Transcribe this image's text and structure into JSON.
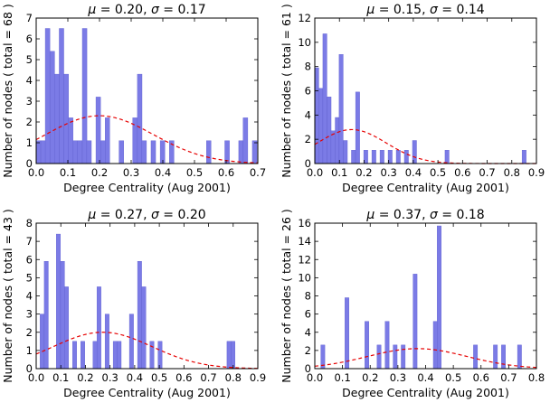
{
  "chart_data": [
    {
      "type": "bar",
      "title_prefix": "μ = 0.20, σ = 0.17",
      "mu_label": "μ",
      "mu": "0.20",
      "sigma_label": "σ",
      "sigma": "0.17",
      "xlabel": "Degree Centrality (Aug 2001)",
      "ylabel": "Number of nodes ( total = 68 )",
      "xlim": [
        0,
        0.7
      ],
      "ylim": [
        0,
        7
      ],
      "xticks": [
        "0.0",
        "0.1",
        "0.2",
        "0.3",
        "0.4",
        "0.5",
        "0.6",
        "0.7"
      ],
      "yticks": [
        "0",
        "1",
        "2",
        "3",
        "4",
        "5",
        "6",
        "7"
      ],
      "bin_width": 0.0145,
      "x": [
        0.007,
        0.022,
        0.036,
        0.051,
        0.065,
        0.08,
        0.095,
        0.109,
        0.124,
        0.138,
        0.153,
        0.167,
        0.196,
        0.211,
        0.225,
        0.269,
        0.312,
        0.327,
        0.341,
        0.37,
        0.399,
        0.428,
        0.545,
        0.603,
        0.647,
        0.661,
        0.69
      ],
      "values": [
        1.1,
        1.1,
        6.5,
        5.4,
        4.3,
        6.5,
        4.3,
        2.2,
        1.1,
        1.1,
        6.5,
        1.1,
        3.2,
        1.1,
        2.2,
        1.1,
        2.2,
        4.3,
        1.1,
        1.1,
        1.1,
        1.1,
        1.1,
        1.1,
        1.1,
        2.2,
        1.1
      ],
      "curve": {
        "mu": 0.2,
        "sigma": 0.17,
        "peak": 2.3
      }
    },
    {
      "type": "bar",
      "title_prefix": "μ = 0.15, σ = 0.14",
      "mu_label": "μ",
      "mu": "0.15",
      "sigma_label": "σ",
      "sigma": "0.14",
      "xlabel": "Degree Centrality (Aug 2001)",
      "ylabel": "Number of nodes ( total = 61 )",
      "xlim": [
        0,
        0.9
      ],
      "ylim": [
        0,
        12
      ],
      "xticks": [
        "0.0",
        "0.1",
        "0.2",
        "0.3",
        "0.4",
        "0.5",
        "0.6",
        "0.7",
        "0.8",
        "0.9"
      ],
      "yticks": [
        "0",
        "2",
        "4",
        "6",
        "8",
        "10",
        "12"
      ],
      "bin_width": 0.0165,
      "x": [
        0.008,
        0.025,
        0.041,
        0.058,
        0.074,
        0.091,
        0.107,
        0.124,
        0.157,
        0.174,
        0.207,
        0.24,
        0.273,
        0.306,
        0.339,
        0.372,
        0.405,
        0.537,
        0.85
      ],
      "values": [
        7.9,
        6.2,
        10.7,
        5.5,
        2.7,
        3.8,
        9.0,
        1.9,
        1.1,
        5.9,
        1.1,
        1.1,
        1.1,
        1.1,
        1.1,
        1.1,
        1.9,
        1.1,
        1.1
      ],
      "curve": {
        "mu": 0.15,
        "sigma": 0.14,
        "peak": 2.8
      }
    },
    {
      "type": "bar",
      "title_prefix": "μ = 0.27, σ = 0.20",
      "mu_label": "μ",
      "mu": "0.27",
      "sigma_label": "σ",
      "sigma": "0.20",
      "xlabel": "Degree Centrality (Aug 2001)",
      "ylabel": "Number of nodes ( total = 43 )",
      "xlim": [
        0,
        0.9
      ],
      "ylim": [
        0,
        8
      ],
      "xticks": [
        "0.0",
        "0.1",
        "0.2",
        "0.3",
        "0.4",
        "0.5",
        "0.6",
        "0.7",
        "0.8",
        "0.9"
      ],
      "yticks": [
        "0",
        "1",
        "2",
        "3",
        "4",
        "5",
        "6",
        "7",
        "8"
      ],
      "bin_width": 0.0165,
      "x": [
        0.024,
        0.041,
        0.09,
        0.107,
        0.123,
        0.156,
        0.189,
        0.239,
        0.255,
        0.288,
        0.321,
        0.337,
        0.387,
        0.42,
        0.437,
        0.47,
        0.503,
        0.783,
        0.799
      ],
      "values": [
        3.0,
        5.9,
        7.4,
        5.9,
        4.5,
        1.5,
        1.5,
        1.5,
        4.5,
        3.0,
        1.5,
        1.5,
        3.0,
        5.9,
        4.5,
        1.5,
        1.5,
        1.5,
        1.5
      ],
      "curve": {
        "mu": 0.27,
        "sigma": 0.2,
        "peak": 2.0
      }
    },
    {
      "type": "bar",
      "title_prefix": "μ = 0.37, σ = 0.18",
      "mu_label": "μ",
      "mu": "0.37",
      "sigma_label": "σ",
      "sigma": "0.18",
      "xlabel": "Degree Centrality (Aug 2001)",
      "ylabel": "Number of nodes ( total = 26 )",
      "xlim": [
        0,
        0.8
      ],
      "ylim": [
        0,
        16
      ],
      "xticks": [
        "0.0",
        "0.1",
        "0.2",
        "0.3",
        "0.4",
        "0.5",
        "0.6",
        "0.7",
        "0.8"
      ],
      "yticks": [
        "0",
        "2",
        "4",
        "6",
        "8",
        "10",
        "12",
        "14",
        "16"
      ],
      "bin_width": 0.0145,
      "x": [
        0.029,
        0.116,
        0.188,
        0.232,
        0.261,
        0.29,
        0.319,
        0.362,
        0.435,
        0.449,
        0.58,
        0.652,
        0.681,
        0.739
      ],
      "values": [
        2.6,
        7.8,
        5.2,
        2.6,
        5.2,
        2.6,
        2.6,
        10.4,
        5.2,
        15.7,
        2.6,
        2.6,
        2.6,
        2.6
      ],
      "curve": {
        "mu": 0.37,
        "sigma": 0.18,
        "peak": 2.2
      }
    }
  ]
}
